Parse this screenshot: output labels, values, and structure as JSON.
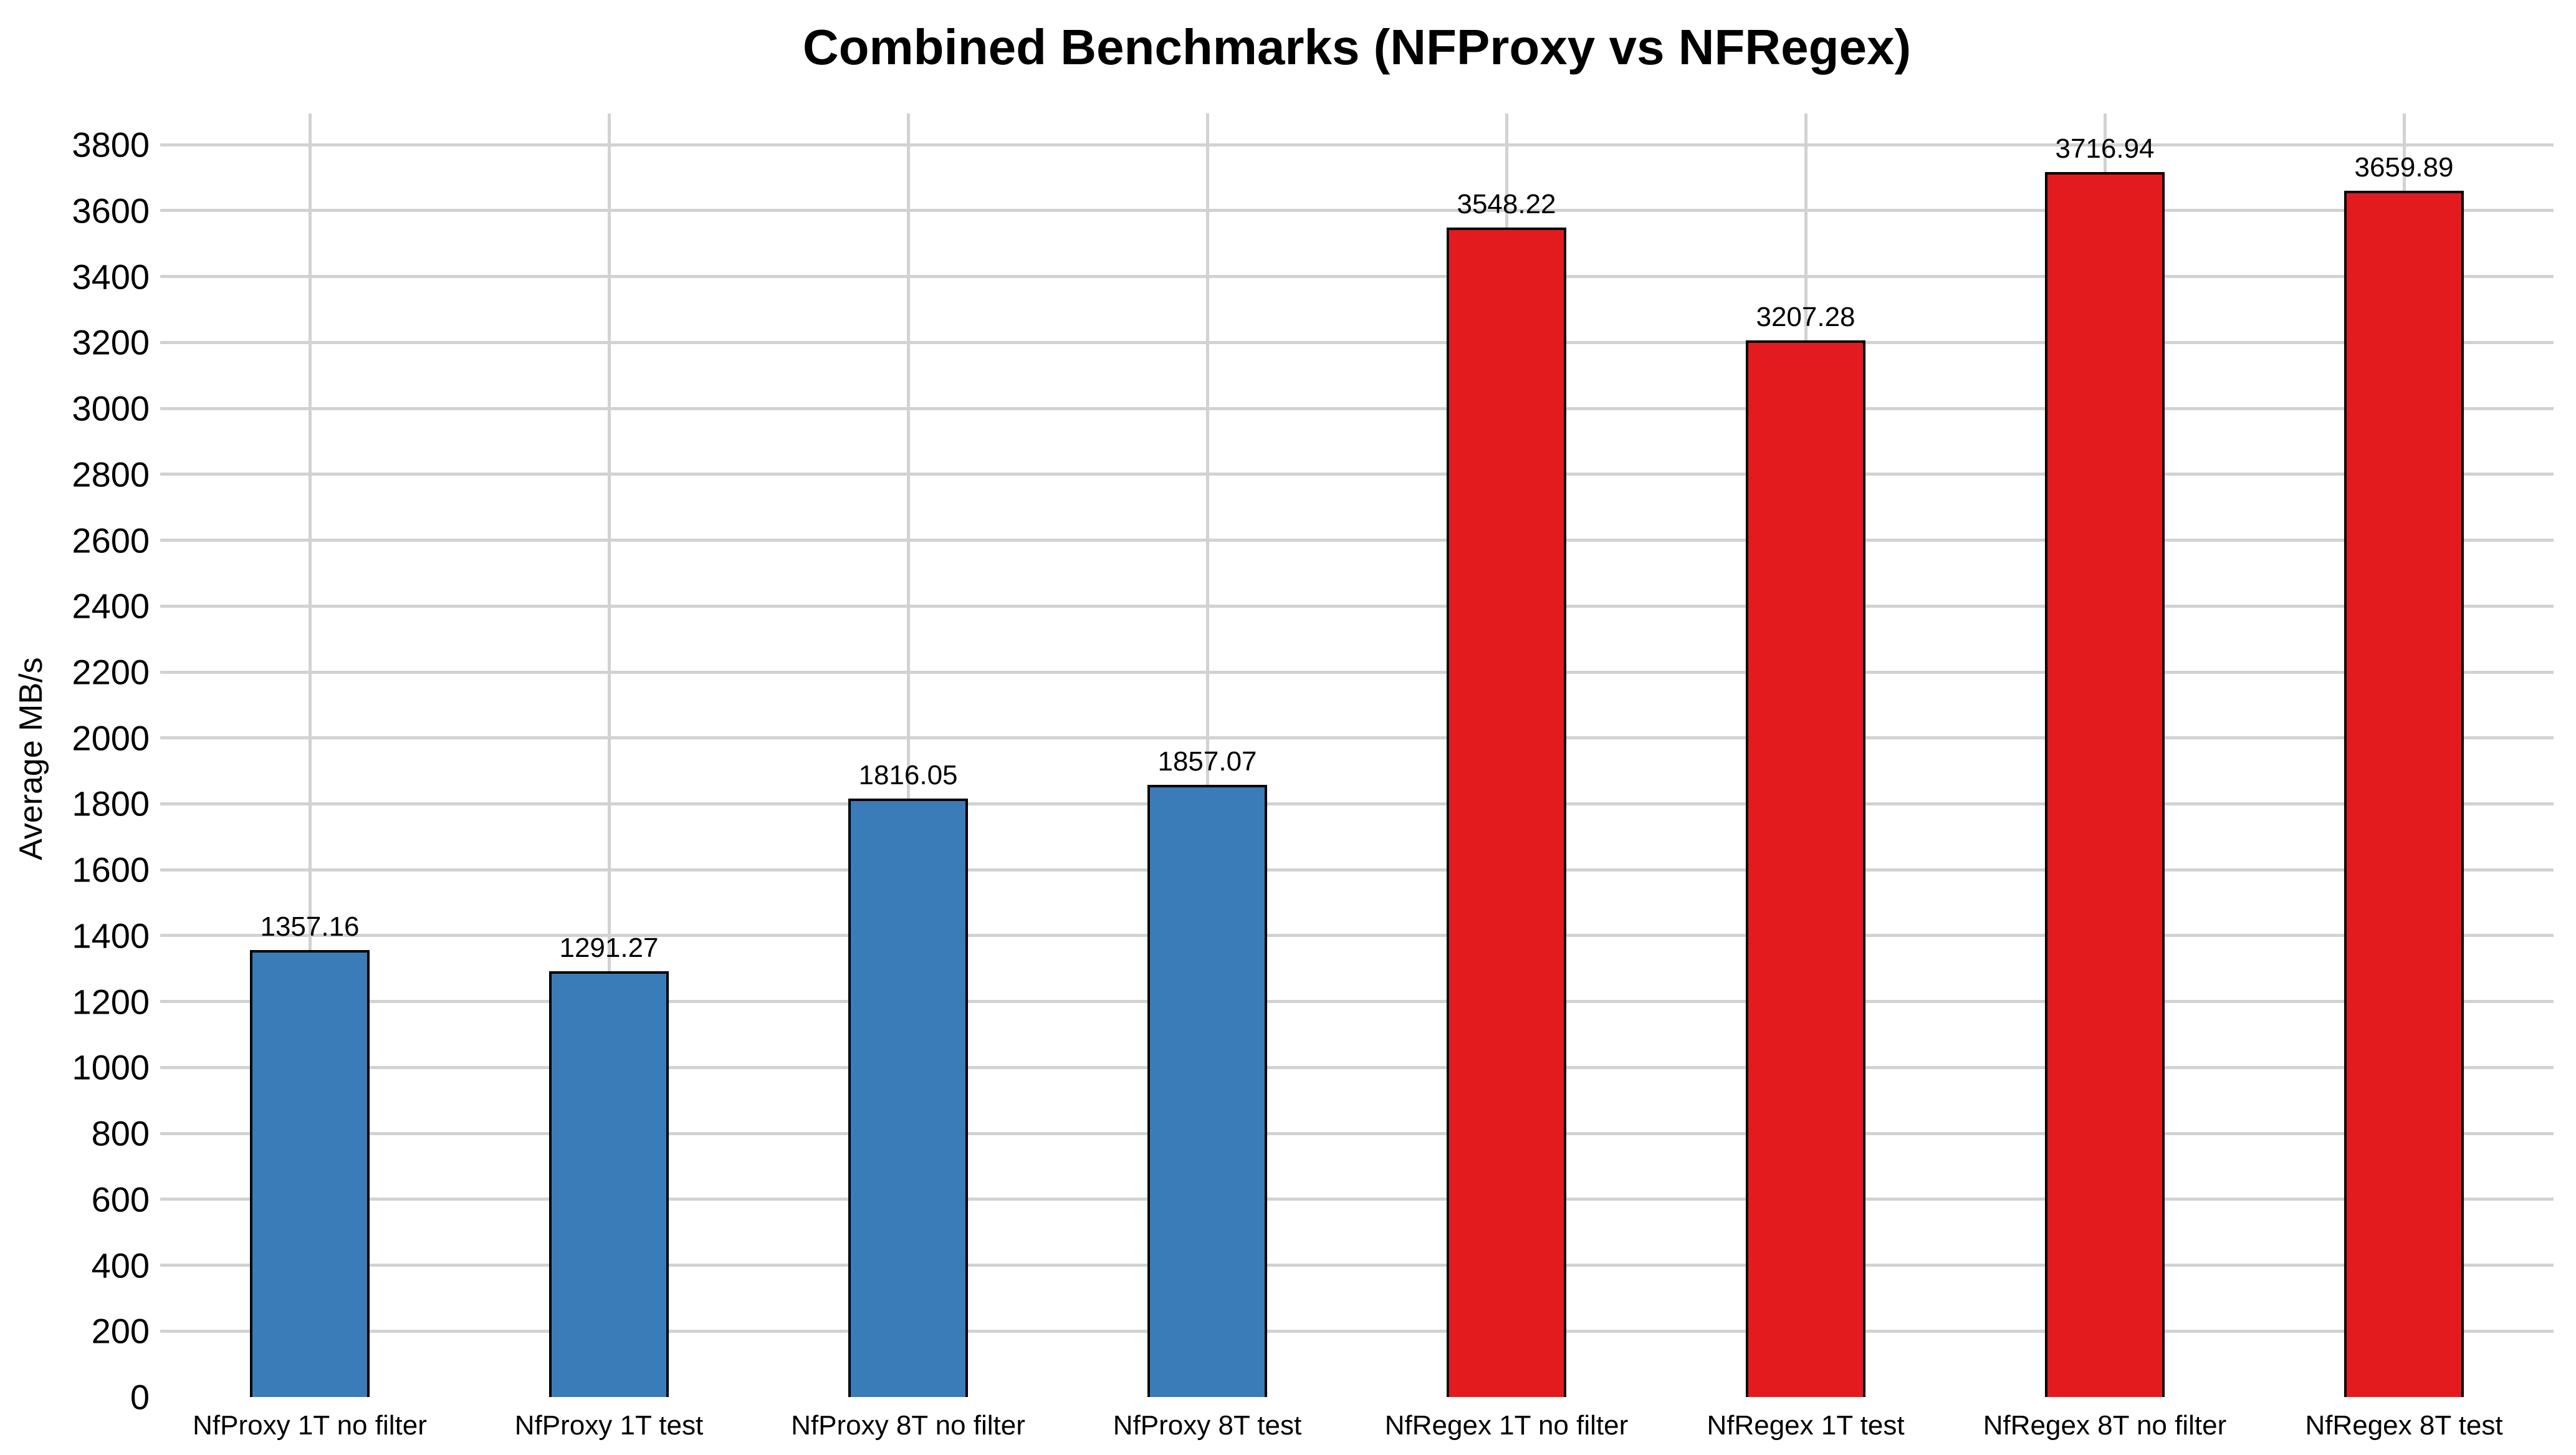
{
  "chart_data": {
    "type": "bar",
    "title": "Combined Benchmarks (NFProxy vs NFRegex)",
    "ylabel": "Average MB/s",
    "xlabel": "",
    "categories": [
      "NfProxy 1T no filter",
      "NfProxy 1T test",
      "NfProxy 8T no filter",
      "NfProxy 8T test",
      "NfRegex 1T no filter",
      "NfRegex 1T test",
      "NfRegex 8T no filter",
      "NfRegex 8T test"
    ],
    "values": [
      1357.16,
      1291.27,
      1816.05,
      1857.07,
      3548.22,
      3207.28,
      3716.94,
      3659.89
    ],
    "bar_colors": [
      "#3a7cb8",
      "#3a7cb8",
      "#3a7cb8",
      "#3a7cb8",
      "#e41b1e",
      "#e41b1e",
      "#e41b1e",
      "#e41b1e"
    ],
    "groups": [
      {
        "name": "NFProxy",
        "color": "#3a7cb8"
      },
      {
        "name": "NFRegex",
        "color": "#e41b1e"
      }
    ],
    "yticks": [
      0,
      200,
      400,
      600,
      800,
      1000,
      1200,
      1400,
      1600,
      1800,
      2000,
      2200,
      2400,
      2600,
      2800,
      3000,
      3200,
      3400,
      3600,
      3800
    ],
    "ylim": [
      0,
      3895
    ],
    "grid": true,
    "gridline_color": "#d2d2d2",
    "bar_border_color": "#000000",
    "value_label_decimals": 2,
    "legend": "none",
    "background_color": "#ffffff",
    "text_color": "#000000"
  }
}
